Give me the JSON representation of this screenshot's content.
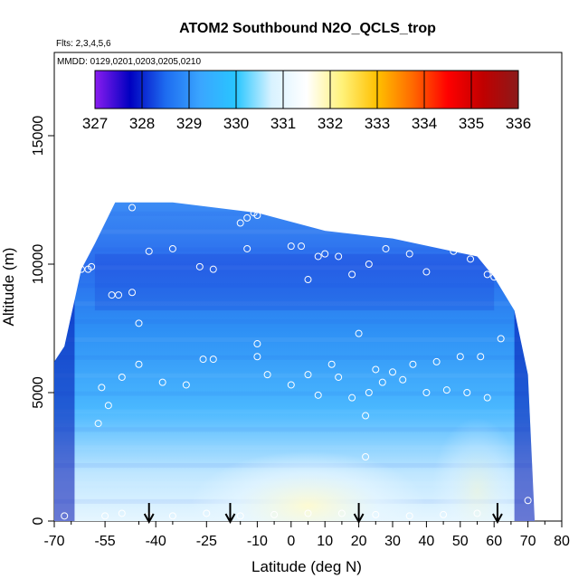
{
  "chart_data": {
    "type": "heatmap",
    "title": "ATOM2 Southbound N2O_QCLS_trop",
    "flights_note": "Flts: 2,3,4,5,6",
    "dates_note": "MMDD: 0129,0201,0203,0205,0210",
    "xlabel": "Latitude (deg N)",
    "ylabel": "Altitude (m)",
    "xlim": [
      -70,
      80
    ],
    "ylim": [
      0,
      18000
    ],
    "x_ticks": [
      "-70",
      "-55",
      "-40",
      "-25",
      "-10",
      "0",
      "10",
      "20",
      "30",
      "40",
      "50",
      "60",
      "70",
      "80"
    ],
    "x_tick_values": [
      -70,
      -55,
      -40,
      -25,
      -10,
      0,
      10,
      20,
      30,
      40,
      50,
      60,
      70,
      80
    ],
    "y_ticks": [
      "0",
      "5000",
      "10000",
      "15000"
    ],
    "y_tick_values": [
      0,
      5000,
      10000,
      15000
    ],
    "colorbar": {
      "min": 327,
      "max": 336,
      "ticks": [
        "327",
        "328",
        "329",
        "330",
        "331",
        "332",
        "333",
        "334",
        "335",
        "336"
      ],
      "stops": [
        "#8a1cf0",
        "#0000c0",
        "#1e6cf0",
        "#3aa6ff",
        "#28c6ff",
        "#d8f2ff",
        "#ffffff",
        "#fff27a",
        "#ffc000",
        "#ff6a00",
        "#ff0000",
        "#c00000",
        "#8b1a1a"
      ]
    },
    "profile_arrows_lat": [
      -42,
      -18,
      20,
      61
    ],
    "curtain_envelope": [
      {
        "lat": -70,
        "top": 6200
      },
      {
        "lat": -67,
        "top": 6800
      },
      {
        "lat": -62,
        "top": 9800
      },
      {
        "lat": -58,
        "top": 10800
      },
      {
        "lat": -52,
        "top": 12400
      },
      {
        "lat": -35,
        "top": 12400
      },
      {
        "lat": -10,
        "top": 12000
      },
      {
        "lat": 10,
        "top": 11300
      },
      {
        "lat": 30,
        "top": 11000
      },
      {
        "lat": 55,
        "top": 10300
      },
      {
        "lat": 60,
        "top": 9500
      },
      {
        "lat": 66,
        "top": 8200
      },
      {
        "lat": 70,
        "top": 5700
      },
      {
        "lat": 72,
        "top": 0
      }
    ],
    "sample_points": [
      {
        "lat": -67,
        "alt": 200
      },
      {
        "lat": -55,
        "alt": 200
      },
      {
        "lat": -50,
        "alt": 300
      },
      {
        "lat": -42,
        "alt": 200
      },
      {
        "lat": -35,
        "alt": 200
      },
      {
        "lat": -25,
        "alt": 300
      },
      {
        "lat": -15,
        "alt": 200
      },
      {
        "lat": -5,
        "alt": 250
      },
      {
        "lat": 5,
        "alt": 300
      },
      {
        "lat": 15,
        "alt": 300
      },
      {
        "lat": 25,
        "alt": 250
      },
      {
        "lat": 35,
        "alt": 200
      },
      {
        "lat": 45,
        "alt": 250
      },
      {
        "lat": 55,
        "alt": 300
      },
      {
        "lat": 70,
        "alt": 800
      },
      {
        "lat": -57,
        "alt": 3800
      },
      {
        "lat": -54,
        "alt": 4500
      },
      {
        "lat": -50,
        "alt": 5600
      },
      {
        "lat": -56,
        "alt": 5200
      },
      {
        "lat": -45,
        "alt": 6100
      },
      {
        "lat": -38,
        "alt": 5400
      },
      {
        "lat": -31,
        "alt": 5300
      },
      {
        "lat": -26,
        "alt": 6300
      },
      {
        "lat": -23,
        "alt": 6300
      },
      {
        "lat": -10,
        "alt": 6400
      },
      {
        "lat": -10,
        "alt": 6900
      },
      {
        "lat": -7,
        "alt": 5700
      },
      {
        "lat": 0,
        "alt": 5300
      },
      {
        "lat": 5,
        "alt": 5700
      },
      {
        "lat": 8,
        "alt": 4900
      },
      {
        "lat": 12,
        "alt": 6100
      },
      {
        "lat": 14,
        "alt": 5600
      },
      {
        "lat": 18,
        "alt": 4800
      },
      {
        "lat": 20,
        "alt": 7300
      },
      {
        "lat": 23,
        "alt": 5000
      },
      {
        "lat": 25,
        "alt": 5900
      },
      {
        "lat": 27,
        "alt": 5400
      },
      {
        "lat": 30,
        "alt": 5800
      },
      {
        "lat": 33,
        "alt": 5500
      },
      {
        "lat": 36,
        "alt": 6100
      },
      {
        "lat": 40,
        "alt": 5000
      },
      {
        "lat": 43,
        "alt": 6200
      },
      {
        "lat": 46,
        "alt": 5100
      },
      {
        "lat": 50,
        "alt": 6400
      },
      {
        "lat": 52,
        "alt": 5000
      },
      {
        "lat": 56,
        "alt": 6400
      },
      {
        "lat": 58,
        "alt": 4800
      },
      {
        "lat": 62,
        "alt": 7100
      },
      {
        "lat": 22,
        "alt": 4100
      },
      {
        "lat": 22,
        "alt": 2500
      },
      {
        "lat": -62,
        "alt": 9800
      },
      {
        "lat": -60,
        "alt": 9800
      },
      {
        "lat": -59,
        "alt": 9900
      },
      {
        "lat": -53,
        "alt": 8800
      },
      {
        "lat": -51,
        "alt": 8800
      },
      {
        "lat": -47,
        "alt": 8900
      },
      {
        "lat": -45,
        "alt": 7700
      },
      {
        "lat": -42,
        "alt": 10500
      },
      {
        "lat": -35,
        "alt": 10600
      },
      {
        "lat": -27,
        "alt": 9900
      },
      {
        "lat": -23,
        "alt": 9800
      },
      {
        "lat": -13,
        "alt": 10600
      },
      {
        "lat": 0,
        "alt": 10700
      },
      {
        "lat": 3,
        "alt": 10700
      },
      {
        "lat": 5,
        "alt": 9400
      },
      {
        "lat": 8,
        "alt": 10300
      },
      {
        "lat": 10,
        "alt": 10400
      },
      {
        "lat": 14,
        "alt": 10300
      },
      {
        "lat": 18,
        "alt": 9600
      },
      {
        "lat": 23,
        "alt": 10000
      },
      {
        "lat": 28,
        "alt": 10600
      },
      {
        "lat": 35,
        "alt": 10400
      },
      {
        "lat": 40,
        "alt": 9700
      },
      {
        "lat": 48,
        "alt": 10500
      },
      {
        "lat": 53,
        "alt": 10200
      },
      {
        "lat": 58,
        "alt": 9600
      },
      {
        "lat": 60,
        "alt": 9500
      },
      {
        "lat": -47,
        "alt": 12200
      },
      {
        "lat": -15,
        "alt": 11600
      },
      {
        "lat": -13,
        "alt": 11800
      },
      {
        "lat": -11,
        "alt": 12000
      },
      {
        "lat": -10,
        "alt": 11900
      }
    ]
  }
}
